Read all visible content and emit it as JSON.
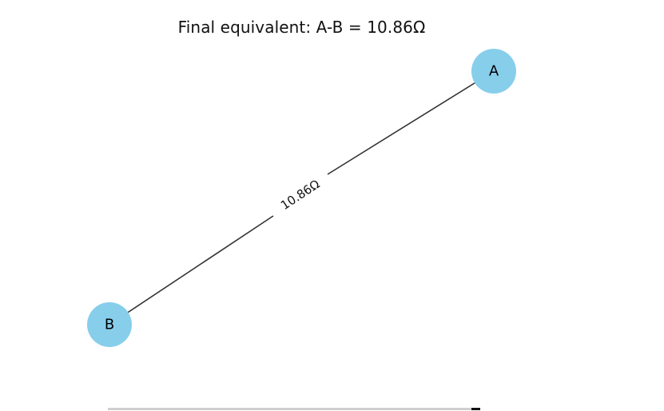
{
  "title": "Final equivalent: A-B = 10.86Ω",
  "colors": {
    "node_fill": "#87ceeb",
    "edge": "#333333",
    "background": "#ffffff"
  },
  "nodes": [
    {
      "id": "A",
      "label": "A"
    },
    {
      "id": "B",
      "label": "B"
    }
  ],
  "edges": [
    {
      "from": "A",
      "to": "B",
      "label": "10.86Ω"
    }
  ]
}
